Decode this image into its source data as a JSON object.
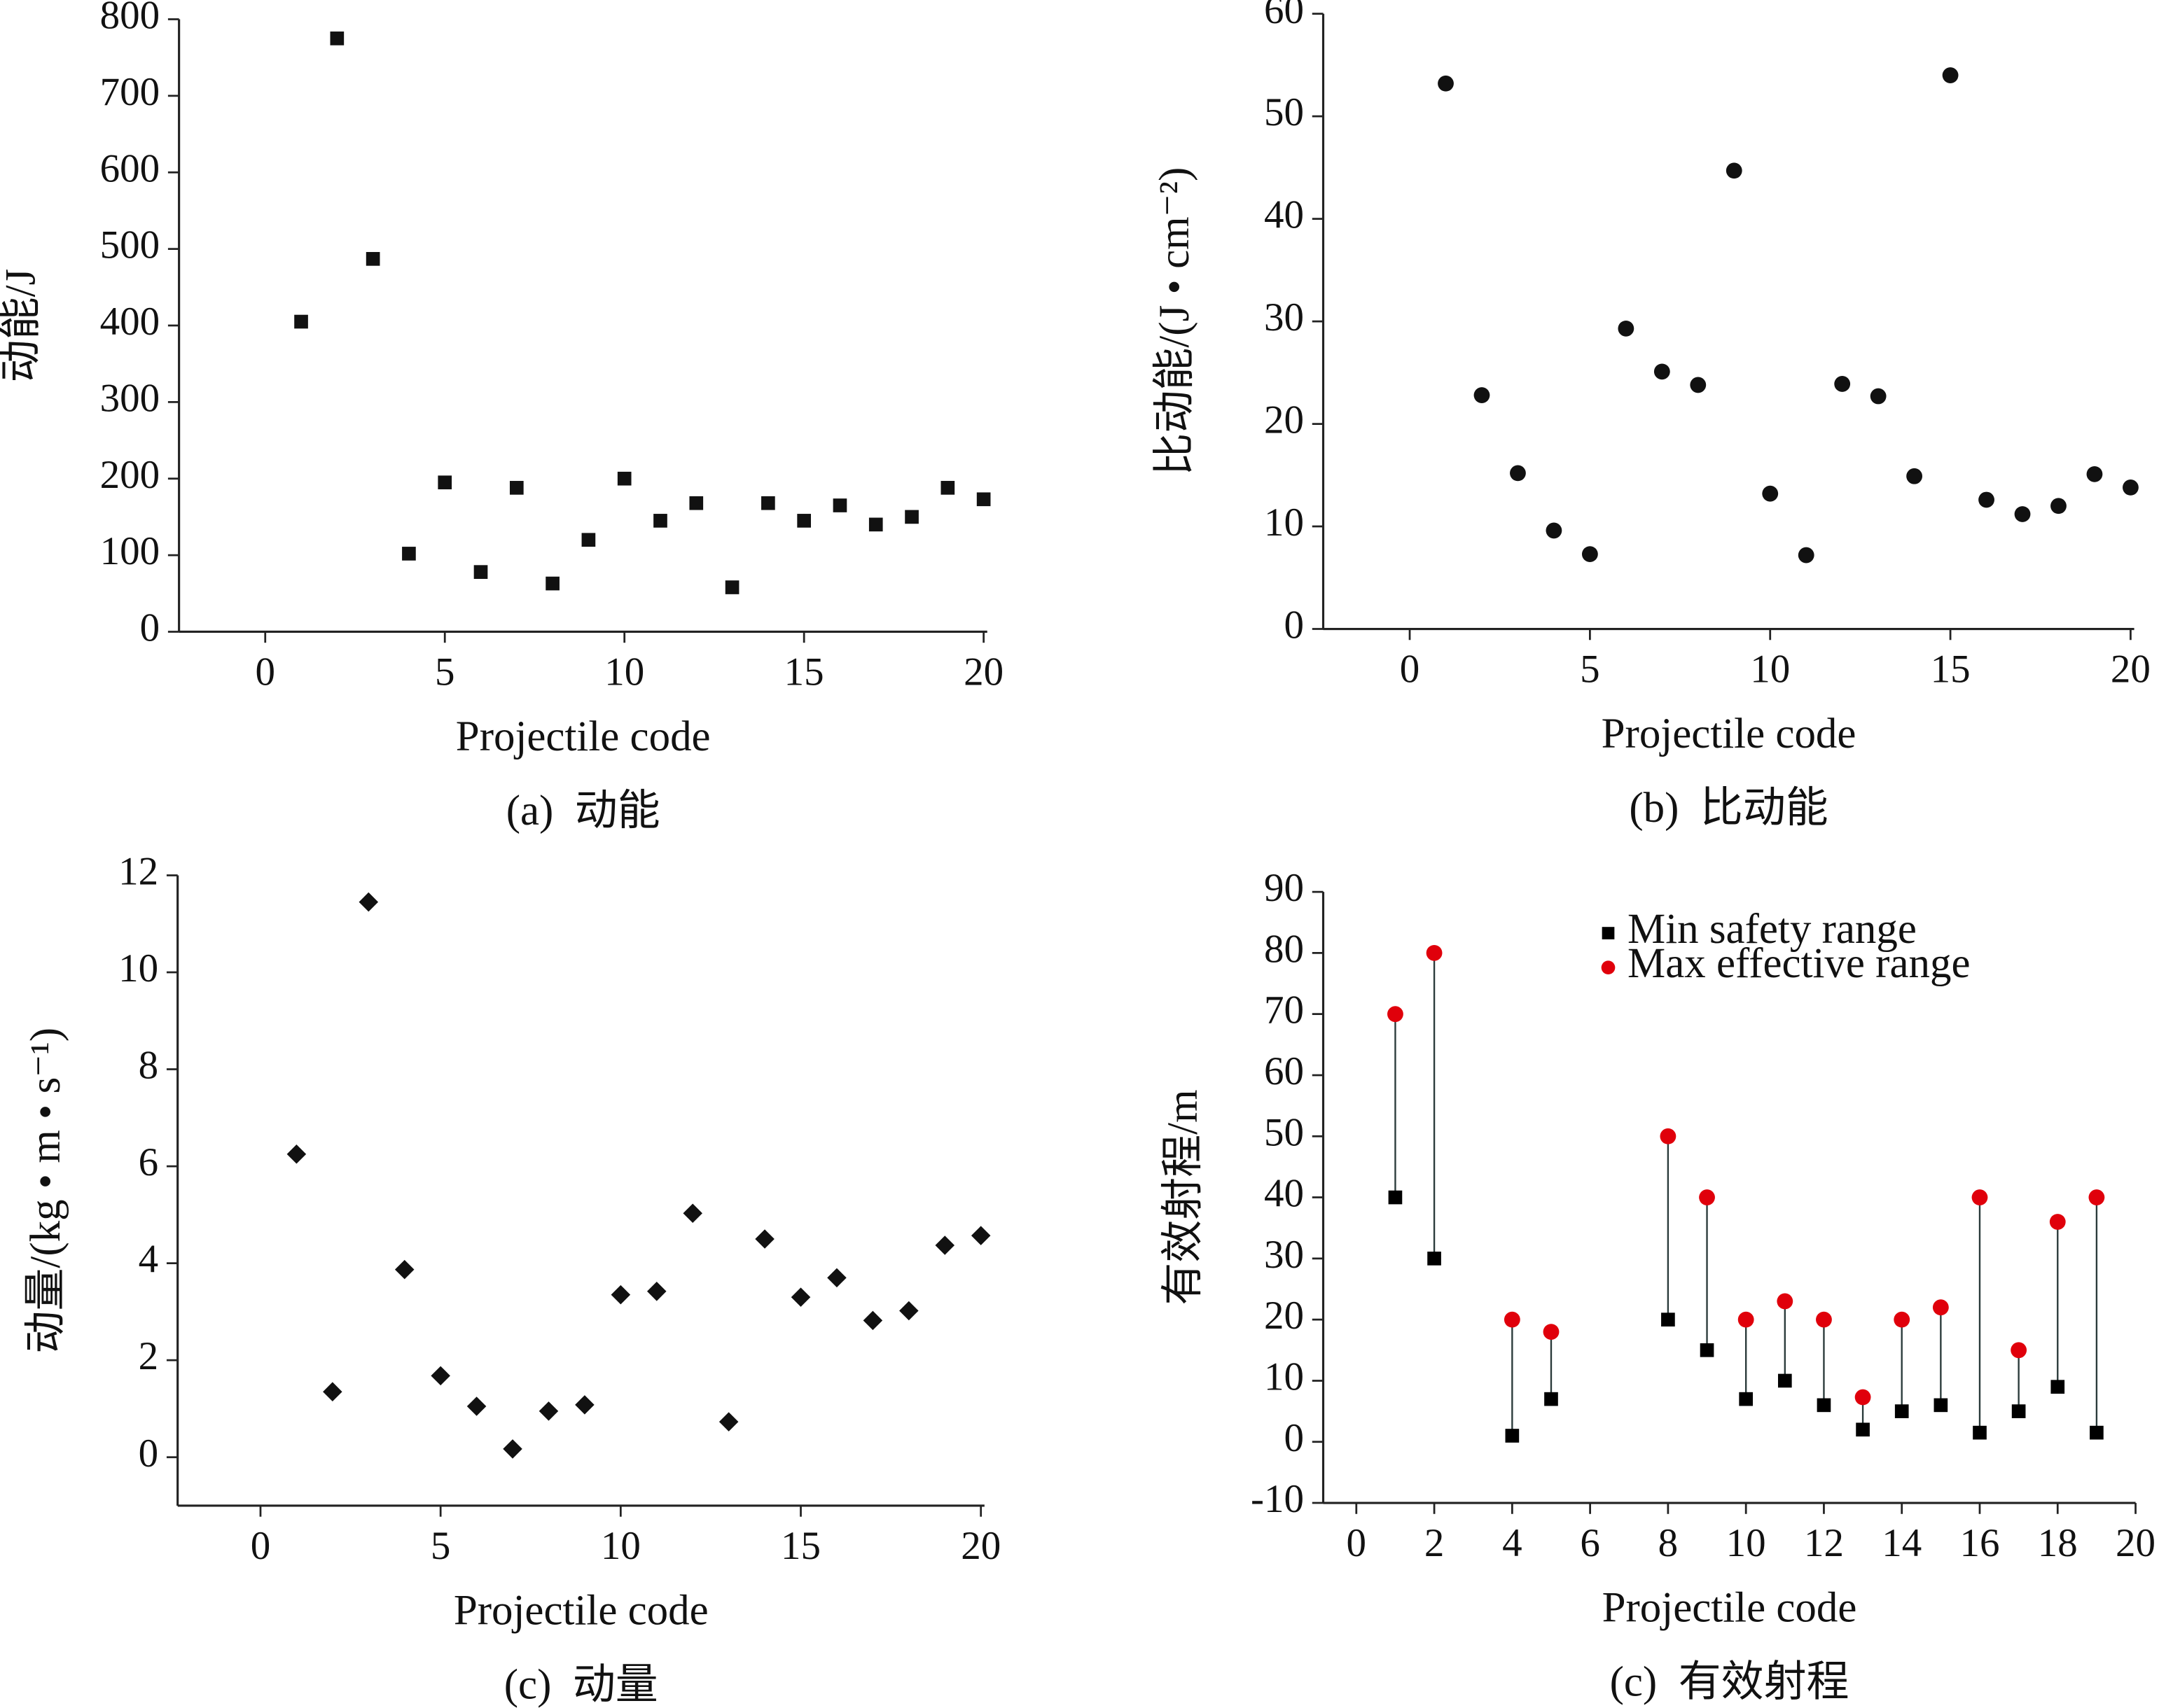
{
  "chart_data": [
    {
      "type": "scatter",
      "caption": "(a)  动能",
      "x_label": "Projectile code",
      "y_label": "动能/J",
      "x": [
        1,
        2,
        3,
        4,
        5,
        6,
        7,
        8,
        9,
        10,
        11,
        12,
        13,
        14,
        15,
        16,
        17,
        18,
        19,
        20
      ],
      "series": [
        {
          "color": "#111111",
          "marker": "square",
          "values": [
            405,
            775,
            487,
            102,
            195,
            78,
            188,
            63,
            120,
            200,
            145,
            168,
            58,
            168,
            145,
            165,
            140,
            150,
            188,
            173
          ]
        }
      ],
      "xlim": [
        -2.4,
        20.1
      ],
      "xticks": [
        0,
        5,
        10,
        15,
        20
      ],
      "ylim": [
        0,
        800
      ],
      "yticks": [
        0,
        100,
        200,
        300,
        400,
        500,
        600,
        700,
        800
      ]
    },
    {
      "type": "scatter",
      "caption": "(b)  比动能",
      "x_label": "Projectile code",
      "y_label": "比动能/(J • cm⁻²)",
      "x": [
        1,
        2,
        3,
        4,
        5,
        6,
        7,
        8,
        9,
        10,
        11,
        12,
        13,
        14,
        15,
        16,
        17,
        18,
        19,
        20
      ],
      "series": [
        {
          "color": "#111111",
          "marker": "circle",
          "values": [
            53.2,
            22.8,
            15.2,
            9.6,
            7.3,
            29.3,
            25.1,
            23.8,
            44.7,
            13.2,
            7.2,
            23.9,
            22.7,
            14.9,
            54.0,
            12.6,
            11.2,
            12.0,
            15.1,
            13.8
          ]
        }
      ],
      "xlim": [
        -2.4,
        20.1
      ],
      "xticks": [
        0,
        5,
        10,
        15,
        20
      ],
      "ylim": [
        0,
        60
      ],
      "yticks": [
        0,
        10,
        20,
        30,
        40,
        50,
        60
      ]
    },
    {
      "type": "scatter",
      "caption": "(c)  动量",
      "x_label": "Projectile code",
      "y_label": "动量/(kg • m • s⁻¹)",
      "x": [
        1,
        2,
        3,
        4,
        5,
        6,
        7,
        8,
        9,
        10,
        11,
        12,
        13,
        14,
        15,
        16,
        17,
        18,
        19,
        20
      ],
      "series": [
        {
          "color": "#111111",
          "marker": "diamond",
          "values": [
            6.25,
            1.35,
            11.45,
            3.87,
            1.68,
            1.05,
            0.17,
            0.95,
            1.08,
            3.35,
            3.42,
            5.03,
            0.73,
            4.5,
            3.3,
            3.7,
            2.82,
            3.02,
            4.37,
            4.57
          ]
        }
      ],
      "xlim": [
        -2.3,
        20.1
      ],
      "xticks": [
        0,
        5,
        10,
        15,
        20
      ],
      "ylim": [
        -1,
        12
      ],
      "yticks": [
        0,
        2,
        4,
        6,
        8,
        10,
        12
      ]
    },
    {
      "type": "scatter",
      "caption": "(c)  有效射程",
      "x_label": "Projectile code",
      "y_label": "有效射程/m",
      "x": [
        1,
        2,
        4,
        5,
        8,
        9,
        10,
        11,
        12,
        13,
        14,
        15,
        16,
        17,
        18,
        19
      ],
      "series": [
        {
          "name": "Min safety range",
          "color": "#000000",
          "marker": "square",
          "values": [
            40,
            30,
            1,
            7,
            20,
            15,
            7,
            10,
            6,
            2,
            5,
            6,
            1.5,
            5,
            9,
            1.5
          ]
        },
        {
          "name": "Max effective range",
          "color": "#e0000b",
          "marker": "circle",
          "values": [
            70,
            80,
            20,
            18,
            50,
            40,
            20,
            23,
            20,
            7.3,
            20,
            22,
            40,
            15,
            36,
            40
          ]
        }
      ],
      "range_lines": true,
      "legend": "upper center",
      "xlim": [
        -0.85,
        20
      ],
      "xticks": [
        0,
        2,
        4,
        6,
        8,
        10,
        12,
        14,
        16,
        18,
        20
      ],
      "ylim": [
        -10,
        90
      ],
      "yticks": [
        -10,
        0,
        10,
        20,
        30,
        40,
        50,
        60,
        70,
        80,
        90
      ]
    }
  ]
}
